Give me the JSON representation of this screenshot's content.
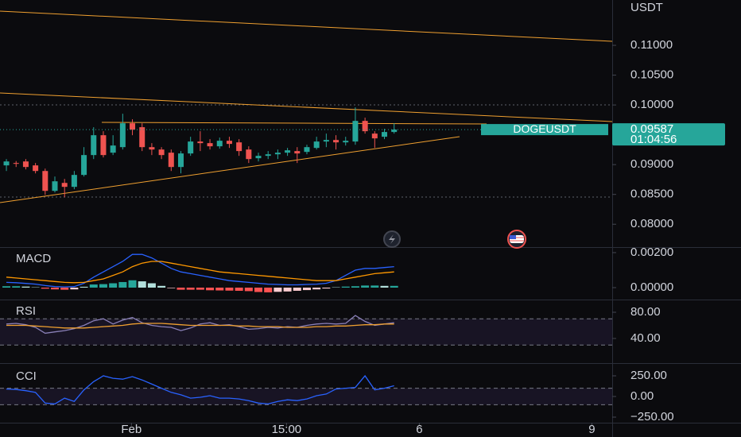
{
  "chart_data": [
    {
      "type": "candlestick",
      "symbol": "DOGEUSDT",
      "currency": "USDT",
      "last_price": 0.09587,
      "countdown": "01:04:56",
      "up_color": "#26a69a",
      "down_color": "#ef5350",
      "xlim": [
        -0.66,
        62.5
      ],
      "ylim": [
        0.0763,
        0.1176
      ],
      "yticks": [
        {
          "value": 0.08,
          "label": "0.08000"
        },
        {
          "value": 0.085,
          "label": "0.08500"
        },
        {
          "value": 0.09,
          "label": "0.09000"
        },
        {
          "value": 0.1,
          "label": "0.10000"
        },
        {
          "value": 0.105,
          "label": "0.10500"
        },
        {
          "value": 0.11,
          "label": "0.11000"
        }
      ],
      "open": [
        0.08987,
        0.09027,
        0.09053,
        0.08987,
        0.08893,
        0.0856,
        0.08693,
        0.08627,
        0.08827,
        0.0916,
        0.09493,
        0.092,
        0.09293,
        0.09693,
        0.09627,
        0.09293,
        0.09253,
        0.092,
        0.0896,
        0.09187,
        0.09387,
        0.0936,
        0.09307,
        0.094,
        0.09373,
        0.09253,
        0.09107,
        0.09147,
        0.09173,
        0.092,
        0.09227,
        0.09213,
        0.0928,
        0.09387,
        0.09413,
        0.09373,
        0.09387,
        0.09733,
        0.0952,
        0.09467,
        0.09547
      ],
      "high": [
        0.09093,
        0.0906,
        0.09093,
        0.09027,
        0.08933,
        0.088,
        0.0876,
        0.08893,
        0.09293,
        0.09627,
        0.0956,
        0.09493,
        0.09853,
        0.0976,
        0.09693,
        0.0936,
        0.09293,
        0.09253,
        0.09227,
        0.09467,
        0.0956,
        0.09427,
        0.09453,
        0.09467,
        0.09427,
        0.09307,
        0.092,
        0.09227,
        0.09253,
        0.0928,
        0.09293,
        0.09333,
        0.09467,
        0.0952,
        0.09493,
        0.09467,
        0.0996,
        0.09787,
        0.0956,
        0.096,
        0.09693
      ],
      "low": [
        0.08893,
        0.0896,
        0.0892,
        0.08853,
        0.08493,
        0.08533,
        0.08453,
        0.08587,
        0.088,
        0.09093,
        0.0912,
        0.0916,
        0.09253,
        0.09493,
        0.09227,
        0.0916,
        0.09093,
        0.08893,
        0.08853,
        0.09147,
        0.09227,
        0.09253,
        0.09267,
        0.0928,
        0.09147,
        0.09027,
        0.09053,
        0.09093,
        0.09093,
        0.09147,
        0.09027,
        0.09173,
        0.09253,
        0.09293,
        0.09253,
        0.0932,
        0.09333,
        0.0952,
        0.0928,
        0.09427,
        0.0952
      ],
      "close": [
        0.09053,
        0.09013,
        0.0896,
        0.08893,
        0.0856,
        0.0872,
        0.08627,
        0.08827,
        0.0916,
        0.09493,
        0.0916,
        0.0932,
        0.09693,
        0.09587,
        0.09293,
        0.09253,
        0.0916,
        0.0896,
        0.09187,
        0.09387,
        0.0936,
        0.09307,
        0.094,
        0.09347,
        0.09227,
        0.09093,
        0.09147,
        0.09173,
        0.092,
        0.0924,
        0.09187,
        0.09293,
        0.09387,
        0.09413,
        0.09373,
        0.094,
        0.09733,
        0.0956,
        0.0944,
        0.09547,
        0.09587
      ]
    },
    {
      "type": "macd",
      "title": "MACD",
      "ylim": [
        -0.00059,
        0.00227
      ],
      "yticks": [
        {
          "value": 0,
          "label": "0.00000"
        },
        {
          "value": 0.002,
          "label": "0.00200"
        }
      ],
      "histogram": [
        8e-05,
        8e-05,
        6e-05,
        2e-05,
        -6e-05,
        -0.0001,
        -0.00012,
        -0.0001,
        5e-05,
        0.00018,
        0.0002,
        0.00025,
        0.00032,
        0.00042,
        0.00036,
        0.00025,
        0.0001,
        -3e-05,
        -0.00012,
        -0.00012,
        -0.00012,
        -0.00015,
        -0.00016,
        -0.00017,
        -0.00018,
        -0.0002,
        -0.00025,
        -0.00027,
        -0.00024,
        -0.00022,
        -0.00018,
        -0.00014,
        -0.0001,
        -5e-05,
        2e-05,
        6e-05,
        8e-05,
        0.00012,
        0.00012,
        0.0001,
        0.0001
      ],
      "series": [
        {
          "color": "#2962ff",
          "values": [
            0.0003,
            0.00028,
            0.00024,
            0.0002,
            0.00012,
            6e-05,
            4e-05,
            6e-05,
            0.00025,
            0.0006,
            0.0009,
            0.0012,
            0.0015,
            0.0019,
            0.0019,
            0.0017,
            0.0014,
            0.0011,
            0.0009,
            0.0008,
            0.0007,
            0.0006,
            0.0005,
            0.0004,
            0.00035,
            0.0003,
            0.00025,
            0.0002,
            0.00018,
            0.00016,
            0.00016,
            0.00018,
            0.0002,
            0.00025,
            0.0004,
            0.0007,
            0.001,
            0.0011,
            0.0011,
            0.00115,
            0.0012
          ]
        },
        {
          "color": "#ff9800",
          "values": [
            0.0006,
            0.00055,
            0.0005,
            0.00045,
            0.0004,
            0.00035,
            0.0003,
            0.00028,
            0.0003,
            0.0004,
            0.0005,
            0.0007,
            0.0009,
            0.0012,
            0.0014,
            0.0015,
            0.0015,
            0.0014,
            0.0013,
            0.0012,
            0.0011,
            0.001,
            0.0009,
            0.00085,
            0.0008,
            0.00075,
            0.0007,
            0.00065,
            0.0006,
            0.00055,
            0.0005,
            0.00045,
            0.0004,
            0.0004,
            0.0004,
            0.0005,
            0.0006,
            0.0007,
            0.0008,
            0.00085,
            0.0009
          ]
        }
      ]
    },
    {
      "type": "rsi",
      "title": "RSI",
      "ylim": [
        4.8,
        98.2
      ],
      "yticks": [
        {
          "value": 40,
          "label": "40.00"
        },
        {
          "value": 80,
          "label": "80.00"
        }
      ],
      "band": [
        30,
        70
      ],
      "series": [
        {
          "color": "#8a80b8",
          "values": [
            62,
            63,
            61,
            57,
            48,
            50,
            52,
            55,
            60,
            67,
            70,
            62,
            68,
            72,
            64,
            60,
            58,
            57,
            52,
            56,
            62,
            64,
            60,
            61,
            58,
            54,
            55,
            57,
            56,
            58,
            57,
            60,
            62,
            63,
            62,
            63,
            75,
            66,
            60,
            62,
            64
          ]
        },
        {
          "color": "#f0a030",
          "values": [
            60,
            60,
            60,
            59,
            58,
            57,
            56,
            56,
            56,
            57,
            58,
            59,
            60,
            62,
            63,
            63,
            63,
            62,
            61,
            60,
            60,
            60,
            60,
            60,
            59,
            59,
            58,
            58,
            58,
            57,
            57,
            57,
            58,
            58,
            59,
            59,
            60,
            61,
            61,
            62,
            62
          ]
        }
      ]
    },
    {
      "type": "cci",
      "title": "CCI",
      "ylim": [
        -327,
        375
      ],
      "yticks": [
        {
          "value": -250,
          "label": "−250.00"
        },
        {
          "value": 0,
          "label": "0.00"
        },
        {
          "value": 250,
          "label": "250.00"
        }
      ],
      "band": [
        -100,
        100
      ],
      "series": [
        {
          "color": "#2962ff",
          "values": [
            90,
            85,
            70,
            50,
            -80,
            -90,
            -20,
            -60,
            80,
            180,
            250,
            220,
            210,
            240,
            200,
            150,
            100,
            50,
            20,
            -20,
            -10,
            10,
            -20,
            -20,
            -30,
            -50,
            -80,
            -90,
            -60,
            -40,
            -50,
            -30,
            10,
            30,
            90,
            100,
            110,
            250,
            80,
            100,
            130
          ]
        }
      ],
      "xticks": [
        {
          "value": 12.9,
          "label": "Feb"
        },
        {
          "value": 28.9,
          "label": "15:00"
        },
        {
          "value": 42.6,
          "label": "6"
        },
        {
          "value": 60.4,
          "label": "9"
        }
      ]
    }
  ]
}
